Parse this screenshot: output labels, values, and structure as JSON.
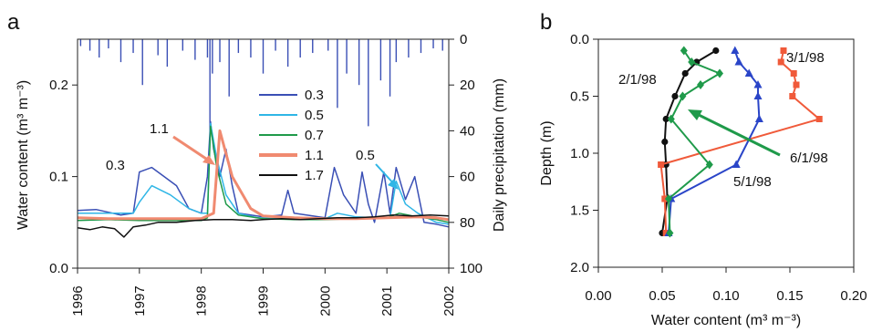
{
  "chart_data": [
    {
      "panel": "a",
      "type": "line",
      "ylabel": "Water content (m³ m⁻³)",
      "y2label": "Daily precipitation (mm)",
      "xlim": [
        1996,
        2002
      ],
      "ylim": [
        0,
        0.25
      ],
      "y2lim": [
        0,
        100
      ],
      "y2_inverted": true,
      "x_ticks": [
        "1996",
        "1997",
        "1998",
        "1999",
        "2000",
        "2001",
        "2002"
      ],
      "y_ticks": [
        "0.0",
        "0.1",
        "0.2"
      ],
      "y2_ticks": [
        "0",
        "20",
        "40",
        "60",
        "80",
        "100"
      ],
      "legend_position": "center",
      "series": [
        {
          "name": "0.3",
          "color": "#3a4fb5",
          "x": [
            1996.0,
            1996.3,
            1996.7,
            1996.9,
            1997.0,
            1997.2,
            1997.4,
            1997.6,
            1997.8,
            1998.0,
            1998.1,
            1998.15,
            1998.2,
            1998.3,
            1998.4,
            1998.5,
            1998.6,
            1998.8,
            1999.0,
            1999.3,
            1999.4,
            1999.5,
            1999.8,
            2000.0,
            2000.15,
            2000.3,
            2000.5,
            2000.6,
            2000.7,
            2000.8,
            2000.95,
            2001.05,
            2001.15,
            2001.3,
            2001.45,
            2001.6,
            2001.8,
            2002.0
          ],
          "y": [
            0.063,
            0.064,
            0.058,
            0.06,
            0.105,
            0.11,
            0.1,
            0.09,
            0.065,
            0.06,
            0.1,
            0.16,
            0.13,
            0.1,
            0.13,
            0.09,
            0.06,
            0.058,
            0.056,
            0.058,
            0.085,
            0.06,
            0.057,
            0.055,
            0.11,
            0.08,
            0.06,
            0.105,
            0.07,
            0.05,
            0.105,
            0.06,
            0.11,
            0.075,
            0.1,
            0.05,
            0.048,
            0.045
          ]
        },
        {
          "name": "0.5",
          "color": "#2fb6e6",
          "x": [
            1996.0,
            1996.5,
            1996.9,
            1997.0,
            1997.2,
            1997.5,
            1997.8,
            1998.0,
            1998.1,
            1998.15,
            1998.25,
            1998.4,
            1998.6,
            1998.9,
            1999.2,
            1999.5,
            2000.0,
            2000.2,
            2000.5,
            2000.8,
            2001.05,
            2001.15,
            2001.3,
            2001.5,
            2001.8,
            2002.0
          ],
          "y": [
            0.06,
            0.06,
            0.06,
            0.072,
            0.09,
            0.08,
            0.065,
            0.06,
            0.06,
            0.158,
            0.12,
            0.08,
            0.06,
            0.055,
            0.054,
            0.055,
            0.054,
            0.06,
            0.056,
            0.055,
            0.055,
            0.095,
            0.07,
            0.06,
            0.05,
            0.048
          ]
        },
        {
          "name": "0.7",
          "color": "#1f9a4a",
          "x": [
            1996.0,
            1996.5,
            1997.0,
            1997.5,
            1998.0,
            1998.1,
            1998.15,
            1998.25,
            1998.4,
            1998.6,
            1999.0,
            1999.5,
            2000.0,
            2000.5,
            2001.0,
            2001.2,
            2001.5,
            2001.8,
            2002.0
          ],
          "y": [
            0.052,
            0.053,
            0.052,
            0.052,
            0.052,
            0.055,
            0.155,
            0.11,
            0.07,
            0.058,
            0.054,
            0.053,
            0.053,
            0.054,
            0.055,
            0.06,
            0.056,
            0.053,
            0.05
          ]
        },
        {
          "name": "1.1",
          "color": "#f08a70",
          "x": [
            1996.0,
            1996.5,
            1997.0,
            1997.5,
            1998.0,
            1998.2,
            1998.3,
            1998.5,
            1998.8,
            1999.0,
            1999.5,
            2000.0,
            2000.5,
            2001.0,
            2001.5,
            2001.8,
            2002.0
          ],
          "y": [
            0.055,
            0.054,
            0.054,
            0.054,
            0.054,
            0.06,
            0.15,
            0.1,
            0.065,
            0.057,
            0.055,
            0.054,
            0.054,
            0.055,
            0.056,
            0.055,
            0.053
          ]
        },
        {
          "name": "1.7",
          "color": "#111111",
          "x": [
            1996.0,
            1996.2,
            1996.4,
            1996.6,
            1996.75,
            1996.9,
            1997.1,
            1997.3,
            1997.6,
            1997.9,
            1998.2,
            1998.5,
            1998.8,
            1999.0,
            1999.3,
            1999.6,
            1999.9,
            2000.2,
            2000.5,
            2000.8,
            2001.1,
            2001.4,
            2001.7,
            2002.0
          ],
          "y": [
            0.044,
            0.042,
            0.045,
            0.043,
            0.034,
            0.045,
            0.047,
            0.05,
            0.05,
            0.052,
            0.053,
            0.053,
            0.052,
            0.053,
            0.054,
            0.053,
            0.054,
            0.055,
            0.055,
            0.056,
            0.058,
            0.057,
            0.058,
            0.057
          ]
        }
      ],
      "precipitation": {
        "color": "#3a4fb5",
        "x": [
          1996.05,
          1996.2,
          1996.35,
          1996.5,
          1996.7,
          1996.9,
          1997.05,
          1997.3,
          1997.45,
          1997.7,
          1997.9,
          1998.1,
          1998.14,
          1998.18,
          1998.3,
          1998.45,
          1998.6,
          1998.8,
          1999.0,
          1999.2,
          1999.4,
          1999.6,
          1999.8,
          2000.05,
          2000.2,
          2000.35,
          2000.55,
          2000.7,
          2000.9,
          2001.05,
          2001.15,
          2001.35,
          2001.55,
          2001.75,
          2001.9
        ],
        "y": [
          3,
          5,
          8,
          4,
          10,
          6,
          20,
          7,
          12,
          5,
          9,
          8,
          40,
          15,
          10,
          25,
          6,
          8,
          15,
          5,
          12,
          8,
          6,
          5,
          30,
          15,
          20,
          38,
          18,
          25,
          10,
          8,
          6,
          4,
          5
        ]
      },
      "annotations": [
        {
          "text": "0.3",
          "color": "#3a4fb5"
        },
        {
          "text": "1.1",
          "color": "#f08a70"
        },
        {
          "text": "0.5",
          "color": "#2fb6e6"
        }
      ]
    },
    {
      "panel": "b",
      "type": "line",
      "xlabel": "Water content (m³ m⁻³)",
      "ylabel": "Depth (m)",
      "xlim": [
        0,
        0.2
      ],
      "ylim": [
        0,
        2.0
      ],
      "y_inverted": true,
      "x_ticks": [
        "0.00",
        "0.05",
        "0.10",
        "0.15",
        "0.20"
      ],
      "y_ticks": [
        "0.0",
        "0.5",
        "1.0",
        "1.5",
        "2.0"
      ],
      "series": [
        {
          "name": "2/1/98",
          "color": "#111111",
          "marker": "circle",
          "x": [
            0.092,
            0.077,
            0.068,
            0.06,
            0.053,
            0.052,
            0.053,
            0.054,
            0.05
          ],
          "y": [
            0.1,
            0.2,
            0.3,
            0.5,
            0.7,
            0.9,
            1.1,
            1.4,
            1.7
          ]
        },
        {
          "name": "3/1/98",
          "color": "#f05a3a",
          "marker": "square",
          "x": [
            0.145,
            0.143,
            0.153,
            0.155,
            0.152,
            0.173,
            0.049,
            0.052,
            0.053
          ],
          "y": [
            0.1,
            0.2,
            0.3,
            0.4,
            0.5,
            0.7,
            1.1,
            1.4,
            1.7
          ]
        },
        {
          "name": "5/1/98",
          "color": "#2a45c8",
          "marker": "triangle",
          "x": [
            0.107,
            0.11,
            0.118,
            0.125,
            0.125,
            0.126,
            0.108,
            0.057,
            0.055
          ],
          "y": [
            0.1,
            0.2,
            0.3,
            0.4,
            0.5,
            0.7,
            1.1,
            1.4,
            1.7
          ]
        },
        {
          "name": "6/1/98",
          "color": "#1f9a4a",
          "marker": "diamond",
          "x": [
            0.067,
            0.073,
            0.095,
            0.08,
            0.066,
            0.057,
            0.087,
            0.055,
            0.056
          ],
          "y": [
            0.1,
            0.2,
            0.3,
            0.4,
            0.5,
            0.7,
            1.1,
            1.4,
            1.7
          ]
        }
      ]
    }
  ]
}
